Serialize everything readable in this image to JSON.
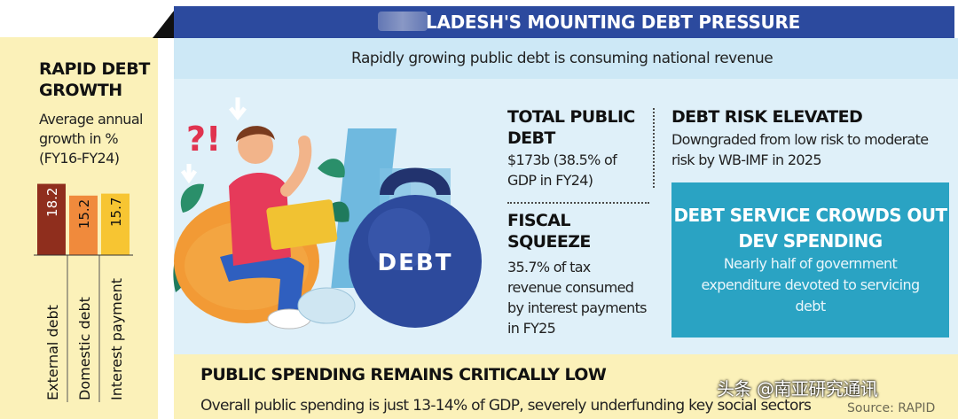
{
  "header": {
    "title": "LADESH'S MOUNTING DEBT PRESSURE",
    "subtitle": "Rapidly growing public debt is consuming national revenue"
  },
  "rapid_debt": {
    "title": "RAPID DEBT GROWTH",
    "subtitle": "Average annual growth in % (FY16-FY24)"
  },
  "chart_data": {
    "type": "bar",
    "title": "RAPID DEBT GROWTH",
    "subtitle": "Average annual growth in % (FY16-FY24)",
    "categories": [
      "External debt",
      "Domestic debt",
      "Interest payment"
    ],
    "values": [
      18.2,
      15.2,
      15.7
    ],
    "value_labels": [
      "18.2",
      "15.2",
      "15.7"
    ],
    "colors": [
      "#8f2e1d",
      "#f08a3c",
      "#f7c532"
    ],
    "baseline": 0,
    "ylim": [
      0,
      19
    ],
    "grid": false
  },
  "illustration": {
    "debt_label": "DEBT",
    "puzzle_text": "?!"
  },
  "total_debt": {
    "title": "TOTAL PUBLIC DEBT",
    "body": "$173b (38.5% of GDP in FY24)"
  },
  "fiscal_squeeze": {
    "title": "FISCAL SQUEEZE",
    "body": "35.7% of tax revenue consumed by interest payments in FY25"
  },
  "debt_risk": {
    "title": "DEBT RISK ELEVATED",
    "body": "Downgraded from low risk to moderate risk by WB-IMF in 2025"
  },
  "debt_service": {
    "title": "DEBT SERVICE CROWDS OUT DEV SPENDING",
    "body": "Nearly half of government expenditure devoted to servicing debt"
  },
  "public_spending": {
    "title": "PUBLIC SPENDING REMAINS CRITICALLY LOW",
    "body": "Overall public spending is just 13-14% of GDP, severely underfunding key social sectors"
  },
  "source": "Source: RAPID",
  "watermark": "头条 @南亚研究通讯",
  "colors": {
    "header": "#2c4a9e",
    "subtitle_band": "#cde8f6",
    "content_bg": "#dff0f9",
    "yellow_panel": "#fbf1b9",
    "teal": "#2aa3c3",
    "kettlebell": "#2d4a9c"
  }
}
